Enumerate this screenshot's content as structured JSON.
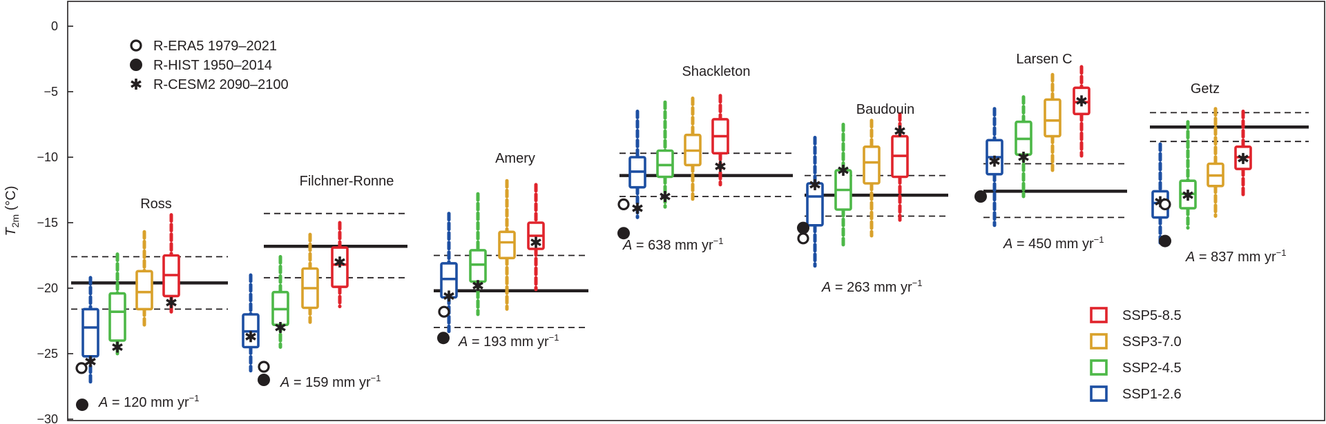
{
  "chart_data": {
    "type": "box",
    "ylabel_parts": {
      "main": "T",
      "sub": "2m",
      "unit": " (°C)"
    },
    "ylim": [
      -30,
      2
    ],
    "yticks": [
      0,
      -5,
      -10,
      -15,
      -20,
      -25,
      -30
    ],
    "ytick_labels": [
      "0",
      "−5",
      "−10",
      "−15",
      "−20",
      "−25",
      "−30"
    ],
    "grid": false,
    "marker_legend": [
      {
        "marker": "open-circle",
        "label": "R-ERA5 1979–2021"
      },
      {
        "marker": "filled-circle",
        "label": "R-HIST 1950–2014"
      },
      {
        "marker": "asterisk",
        "label": "R-CESM2 2090–2100"
      }
    ],
    "scenarios": [
      {
        "name": "SSP1-2.6",
        "color": "#1d4fa2"
      },
      {
        "name": "SSP2-4.5",
        "color": "#4db848"
      },
      {
        "name": "SSP3-7.0",
        "color": "#d9a12b"
      },
      {
        "name": "SSP5-8.5",
        "color": "#e0242c"
      }
    ],
    "scenario_legend_order": [
      "SSP5-8.5",
      "SSP3-7.0",
      "SSP2-4.5",
      "SSP1-2.6"
    ],
    "regions": [
      {
        "name": "Ross",
        "accumulation_value": "120",
        "hist_mean": -19.6,
        "hist_range": [
          -21.6,
          -17.6
        ],
        "era5": -26.1,
        "rhist": -28.9,
        "boxes": [
          {
            "scenario": "SSP1-2.6",
            "whislo": -27.4,
            "q1": -25.2,
            "med": -23.0,
            "q3": -21.6,
            "whishi": -19.2,
            "cesm2": -25.6
          },
          {
            "scenario": "SSP2-4.5",
            "whislo": -25.0,
            "q1": -24.0,
            "med": -21.8,
            "q3": -20.4,
            "whishi": -17.4,
            "cesm2": -24.5
          },
          {
            "scenario": "SSP3-7.0",
            "whislo": -22.8,
            "q1": -21.6,
            "med": -20.3,
            "q3": -18.7,
            "whishi": -15.7,
            "cesm2": null
          },
          {
            "scenario": "SSP5-8.5",
            "whislo": -22.0,
            "q1": -20.6,
            "med": -19.0,
            "q3": -17.5,
            "whishi": -14.4,
            "cesm2": -21.1
          }
        ]
      },
      {
        "name": "Filchner-Ronne",
        "accumulation_value": "159",
        "hist_mean": -16.8,
        "hist_range": [
          -19.2,
          -14.3
        ],
        "era5": -26.0,
        "rhist": -27.0,
        "boxes": [
          {
            "scenario": "SSP1-2.6",
            "whislo": -26.3,
            "q1": -24.5,
            "med": -23.3,
            "q3": -22.0,
            "whishi": -19.0,
            "cesm2": -23.7
          },
          {
            "scenario": "SSP2-4.5",
            "whislo": -24.5,
            "q1": -22.8,
            "med": -21.6,
            "q3": -20.3,
            "whishi": -17.6,
            "cesm2": -23.0
          },
          {
            "scenario": "SSP3-7.0",
            "whislo": -22.6,
            "q1": -21.5,
            "med": -20.0,
            "q3": -18.5,
            "whishi": -15.9,
            "cesm2": null
          },
          {
            "scenario": "SSP5-8.5",
            "whislo": -21.4,
            "q1": -19.9,
            "med": -18.2,
            "q3": -16.9,
            "whishi": -15.0,
            "cesm2": -18.0
          }
        ]
      },
      {
        "name": "Amery",
        "accumulation_value": "193",
        "hist_mean": -20.2,
        "hist_range": [
          -23.0,
          -17.5
        ],
        "era5": -21.8,
        "rhist": -23.8,
        "boxes": [
          {
            "scenario": "SSP1-2.6",
            "whislo": -23.3,
            "q1": -20.7,
            "med": -19.3,
            "q3": -18.1,
            "whishi": -14.3,
            "cesm2": -20.6
          },
          {
            "scenario": "SSP2-4.5",
            "whislo": -22.0,
            "q1": -19.5,
            "med": -18.2,
            "q3": -17.1,
            "whishi": -12.8,
            "cesm2": -19.8
          },
          {
            "scenario": "SSP3-7.0",
            "whislo": -21.6,
            "q1": -17.7,
            "med": -16.5,
            "q3": -15.7,
            "whishi": -11.8,
            "cesm2": null
          },
          {
            "scenario": "SSP5-8.5",
            "whislo": -20.1,
            "q1": -17.0,
            "med": -16.0,
            "q3": -15.0,
            "whishi": -12.1,
            "cesm2": -16.5
          }
        ]
      },
      {
        "name": "Shackleton",
        "accumulation_value": "638",
        "hist_mean": -11.4,
        "hist_range": [
          -13.0,
          -9.7
        ],
        "era5": -13.6,
        "rhist": -15.8,
        "boxes": [
          {
            "scenario": "SSP1-2.6",
            "whislo": -14.6,
            "q1": -12.3,
            "med": -11.1,
            "q3": -10.0,
            "whishi": -6.5,
            "cesm2": -13.9
          },
          {
            "scenario": "SSP2-4.5",
            "whislo": -13.8,
            "q1": -11.5,
            "med": -10.6,
            "q3": -9.5,
            "whishi": -5.8,
            "cesm2": -13.0
          },
          {
            "scenario": "SSP3-7.0",
            "whislo": -13.2,
            "q1": -10.6,
            "med": -9.5,
            "q3": -8.3,
            "whishi": -5.5,
            "cesm2": null
          },
          {
            "scenario": "SSP5-8.5",
            "whislo": -12.1,
            "q1": -9.7,
            "med": -8.4,
            "q3": -7.1,
            "whishi": -5.3,
            "cesm2": -10.7
          }
        ]
      },
      {
        "name": "Baudouin",
        "accumulation_value": "263",
        "hist_mean": -12.9,
        "hist_range": [
          -14.5,
          -11.4
        ],
        "era5": -16.2,
        "rhist": -15.4,
        "boxes": [
          {
            "scenario": "SSP1-2.6",
            "whislo": -18.3,
            "q1": -15.2,
            "med": -13.0,
            "q3": -12.0,
            "whishi": -8.5,
            "cesm2": -12.1
          },
          {
            "scenario": "SSP2-4.5",
            "whislo": -16.9,
            "q1": -14.0,
            "med": -12.5,
            "q3": -11.0,
            "whishi": -7.5,
            "cesm2": -11.0
          },
          {
            "scenario": "SSP3-7.0",
            "whislo": -16.0,
            "q1": -12.0,
            "med": -10.4,
            "q3": -9.2,
            "whishi": -7.2,
            "cesm2": null
          },
          {
            "scenario": "SSP5-8.5",
            "whislo": -14.8,
            "q1": -11.5,
            "med": -9.9,
            "q3": -8.4,
            "whishi": -6.7,
            "cesm2": -8.0
          }
        ]
      },
      {
        "name": "Larsen C",
        "accumulation_value": "450",
        "hist_mean": -12.6,
        "hist_range": [
          -14.6,
          -10.5
        ],
        "era5": -13.0,
        "rhist": -13.0,
        "boxes": [
          {
            "scenario": "SSP1-2.6",
            "whislo": -15.2,
            "q1": -11.3,
            "med": -10.0,
            "q3": -8.7,
            "whishi": -6.3,
            "cesm2": -10.3
          },
          {
            "scenario": "SSP2-4.5",
            "whislo": -13.0,
            "q1": -9.8,
            "med": -8.6,
            "q3": -7.3,
            "whishi": -5.4,
            "cesm2": -10.0
          },
          {
            "scenario": "SSP3-7.0",
            "whislo": -11.0,
            "q1": -8.4,
            "med": -7.2,
            "q3": -5.6,
            "whishi": -3.7,
            "cesm2": null
          },
          {
            "scenario": "SSP5-8.5",
            "whislo": -9.9,
            "q1": -6.7,
            "med": -5.8,
            "q3": -4.7,
            "whishi": -3.1,
            "cesm2": -5.7
          }
        ]
      },
      {
        "name": "Getz",
        "accumulation_value": "837",
        "hist_mean": -7.7,
        "hist_range": [
          -8.8,
          -6.6
        ],
        "era5": -13.6,
        "rhist": -16.4,
        "boxes": [
          {
            "scenario": "SSP1-2.6",
            "whislo": -16.7,
            "q1": -14.6,
            "med": -13.5,
            "q3": -12.6,
            "whishi": -9.0,
            "cesm2": -13.4
          },
          {
            "scenario": "SSP2-4.5",
            "whislo": -15.4,
            "q1": -13.9,
            "med": -12.8,
            "q3": -11.8,
            "whishi": -7.3,
            "cesm2": -12.9
          },
          {
            "scenario": "SSP3-7.0",
            "whislo": -14.5,
            "q1": -12.2,
            "med": -11.4,
            "q3": -10.5,
            "whishi": -6.3,
            "cesm2": null
          },
          {
            "scenario": "SSP5-8.5",
            "whislo": -12.9,
            "q1": -10.9,
            "med": -10.0,
            "q3": -9.2,
            "whishi": -6.5,
            "cesm2": -10.1
          }
        ]
      }
    ],
    "annotation_prefix": "A",
    "annotation_unit": "mm yr",
    "annotation_exponent": "−1",
    "annotation_equals": " = "
  }
}
